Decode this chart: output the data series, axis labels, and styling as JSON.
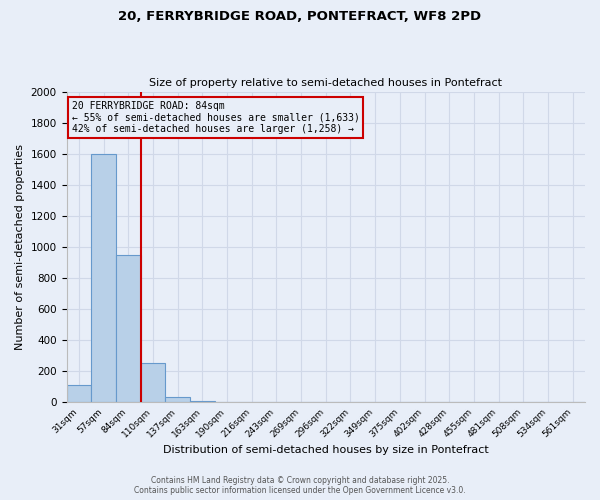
{
  "title_line1": "20, FERRYBRIDGE ROAD, PONTEFRACT, WF8 2PD",
  "title_line2": "Size of property relative to semi-detached houses in Pontefract",
  "xlabel": "Distribution of semi-detached houses by size in Pontefract",
  "ylabel": "Number of semi-detached properties",
  "categories": [
    "31sqm",
    "57sqm",
    "84sqm",
    "110sqm",
    "137sqm",
    "163sqm",
    "190sqm",
    "216sqm",
    "243sqm",
    "269sqm",
    "296sqm",
    "322sqm",
    "349sqm",
    "375sqm",
    "402sqm",
    "428sqm",
    "455sqm",
    "481sqm",
    "508sqm",
    "534sqm",
    "561sqm"
  ],
  "values": [
    110,
    1600,
    950,
    255,
    38,
    12,
    0,
    0,
    0,
    0,
    0,
    0,
    0,
    0,
    0,
    0,
    0,
    0,
    0,
    0,
    0
  ],
  "bar_color": "#b8d0e8",
  "bar_edge_color": "#6699cc",
  "red_line_x": 2.5,
  "red_line_color": "#cc0000",
  "annotation_box_text": "20 FERRYBRIDGE ROAD: 84sqm\n← 55% of semi-detached houses are smaller (1,633)\n42% of semi-detached houses are larger (1,258) →",
  "annotation_box_color": "#cc0000",
  "ylim": [
    0,
    2000
  ],
  "yticks": [
    0,
    200,
    400,
    600,
    800,
    1000,
    1200,
    1400,
    1600,
    1800,
    2000
  ],
  "grid_color": "#d0d8e8",
  "background_color": "#e8eef8",
  "footer_line1": "Contains HM Land Registry data © Crown copyright and database right 2025.",
  "footer_line2": "Contains public sector information licensed under the Open Government Licence v3.0."
}
